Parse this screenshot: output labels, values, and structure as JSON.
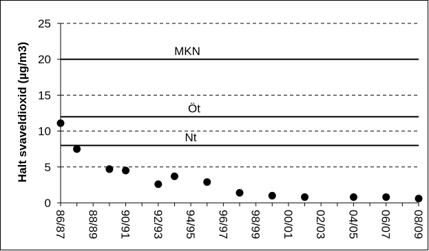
{
  "chart_data": {
    "type": "scatter",
    "title": "",
    "xlabel": "",
    "ylabel": "Halt svaveldioxid (µg/m3)",
    "ylim": [
      0,
      25
    ],
    "yticks": [
      0,
      5,
      10,
      15,
      20,
      25
    ],
    "categories": [
      "86/87",
      "87/88",
      "88/89",
      "89/90",
      "90/91",
      "91/92",
      "92/93",
      "93/94",
      "94/95",
      "95/96",
      "96/97",
      "97/98",
      "98/99",
      "99/00",
      "00/01",
      "01/02",
      "02/03",
      "03/04",
      "04/05",
      "05/06",
      "06/07",
      "07/08",
      "08/09"
    ],
    "x_tick_labels": [
      "86/87",
      "88/89",
      "90/91",
      "92/93",
      "94/95",
      "96/97",
      "98/99",
      "00/01",
      "02/03",
      "04/05",
      "06/07",
      "08/09"
    ],
    "series": [
      {
        "x": [
          "86/87",
          "87/88",
          "89/90",
          "90/91",
          "92/93",
          "93/94",
          "95/96",
          "97/98",
          "99/00",
          "01/02",
          "04/05",
          "06/07",
          "08/09"
        ],
        "values": [
          11.1,
          7.5,
          4.7,
          4.5,
          2.6,
          3.7,
          2.9,
          1.4,
          1.0,
          0.8,
          0.8,
          0.8,
          0.6
        ]
      }
    ],
    "reference_lines": [
      {
        "label": "MKN",
        "value": 20
      },
      {
        "label": "Öt",
        "value": 12
      },
      {
        "label": "Nt",
        "value": 8
      }
    ],
    "grid": {
      "horizontal": true,
      "style": "dashed"
    },
    "legend": "none",
    "colors": {
      "marker": "#000000",
      "lines": "#000000",
      "background": "#ffffff"
    }
  }
}
